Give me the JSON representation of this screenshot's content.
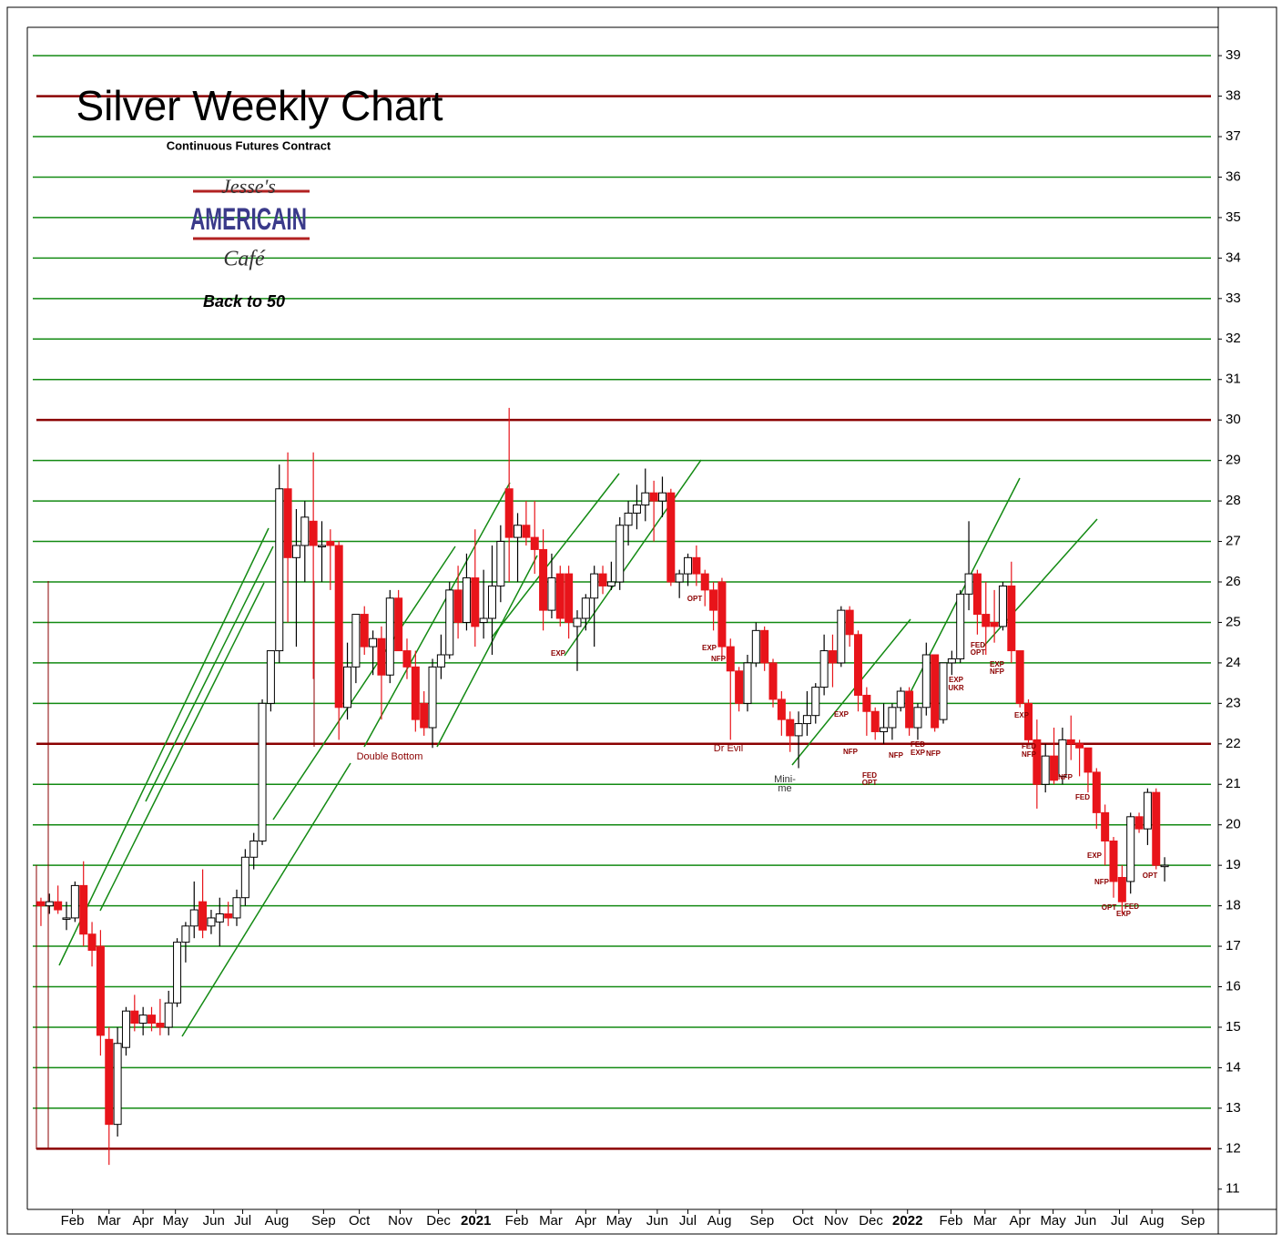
{
  "chart_data": {
    "type": "candlestick",
    "title": "Silver Weekly Chart",
    "subtitle": "Continuous Futures Contract",
    "logo": {
      "top": "Jesse's",
      "middle": "AMERICAIN",
      "bottom": "Café"
    },
    "tagline": "Back to 50",
    "ylim": [
      10.5,
      39.7
    ],
    "yticks": [
      11,
      12,
      13,
      14,
      15,
      16,
      17,
      18,
      19,
      20,
      21,
      22,
      23,
      24,
      25,
      26,
      27,
      28,
      29,
      30,
      31,
      32,
      33,
      34,
      35,
      36,
      37,
      38,
      39
    ],
    "xlim": [
      -1.6,
      138.3
    ],
    "xticks": [
      {
        "value": 3.7,
        "label": "Feb"
      },
      {
        "value": 8.0,
        "label": "Mar"
      },
      {
        "value": 12.0,
        "label": "Apr"
      },
      {
        "value": 15.8,
        "label": "May"
      },
      {
        "value": 20.3,
        "label": "Jun"
      },
      {
        "value": 23.7,
        "label": "Jul"
      },
      {
        "value": 27.7,
        "label": "Aug"
      },
      {
        "value": 33.2,
        "label": "Sep"
      },
      {
        "value": 37.4,
        "label": "Oct"
      },
      {
        "value": 42.2,
        "label": "Nov"
      },
      {
        "value": 46.7,
        "label": "Dec"
      },
      {
        "value": 51.1,
        "label": "2021"
      },
      {
        "value": 55.9,
        "label": "Feb"
      },
      {
        "value": 59.9,
        "label": "Mar"
      },
      {
        "value": 64.0,
        "label": "Apr"
      },
      {
        "value": 67.9,
        "label": "May"
      },
      {
        "value": 72.4,
        "label": "Jun"
      },
      {
        "value": 76.0,
        "label": "Jul"
      },
      {
        "value": 79.7,
        "label": "Aug"
      },
      {
        "value": 84.7,
        "label": "Sep"
      },
      {
        "value": 89.5,
        "label": "Oct"
      },
      {
        "value": 93.4,
        "label": "Nov"
      },
      {
        "value": 97.5,
        "label": "Dec"
      },
      {
        "value": 101.8,
        "label": "2022"
      },
      {
        "value": 106.9,
        "label": "Feb"
      },
      {
        "value": 110.9,
        "label": "Mar"
      },
      {
        "value": 115.0,
        "label": "Apr"
      },
      {
        "value": 118.9,
        "label": "May"
      },
      {
        "value": 122.7,
        "label": "Jun"
      },
      {
        "value": 126.7,
        "label": "Jul"
      },
      {
        "value": 130.5,
        "label": "Aug"
      },
      {
        "value": 135.3,
        "label": "Sep"
      }
    ],
    "up_color": "#ffffff",
    "down_color": "#e8141a",
    "level_color": "#138a13",
    "key_level_color": "#8b0000",
    "levels": [
      13,
      14,
      15,
      16,
      17,
      18,
      19,
      20,
      21,
      23,
      24,
      25,
      26,
      27,
      28,
      29,
      31,
      32,
      33,
      34,
      35,
      36,
      37,
      39
    ],
    "key_levels": [
      12,
      22,
      30,
      38
    ],
    "annotations": [
      "Double Bottom",
      "Dr Evil",
      "Mini-",
      "me"
    ],
    "event_labels": [
      "EXP",
      "OPT",
      "EXP",
      "NFP",
      "EXP",
      "NFP",
      "FED",
      "OPT",
      "NFP",
      "FED",
      "EXP",
      "NFP",
      "EXP",
      "UKR",
      "FED",
      "OPT",
      "EXP",
      "NFP",
      "EXP",
      "FED",
      "NFP",
      "NFP",
      "FED",
      "EXP",
      "NFP",
      "OPT",
      "FED",
      "EXP",
      "OPT"
    ],
    "ohlc": [
      [
        18.1,
        18.2,
        17.5,
        18.0
      ],
      [
        18.0,
        18.3,
        17.8,
        18.1
      ],
      [
        18.1,
        18.5,
        17.8,
        17.9
      ],
      [
        17.7,
        18.1,
        17.4,
        17.7
      ],
      [
        17.7,
        18.6,
        17.6,
        18.5
      ],
      [
        18.5,
        19.1,
        17.0,
        17.3
      ],
      [
        17.3,
        17.6,
        16.5,
        16.9
      ],
      [
        17.0,
        17.4,
        14.3,
        14.8
      ],
      [
        14.7,
        15.0,
        11.6,
        12.6
      ],
      [
        12.6,
        15.0,
        12.3,
        14.6
      ],
      [
        14.5,
        15.5,
        14.3,
        15.4
      ],
      [
        15.4,
        15.8,
        14.9,
        15.1
      ],
      [
        15.1,
        15.5,
        14.8,
        15.3
      ],
      [
        15.3,
        15.5,
        14.9,
        15.1
      ],
      [
        15.1,
        15.7,
        14.8,
        15.0
      ],
      [
        15.0,
        15.9,
        14.8,
        15.6
      ],
      [
        15.6,
        17.2,
        15.5,
        17.1
      ],
      [
        17.1,
        17.6,
        16.6,
        17.5
      ],
      [
        17.5,
        18.6,
        17.2,
        17.9
      ],
      [
        18.1,
        18.9,
        17.2,
        17.4
      ],
      [
        17.5,
        17.9,
        17.3,
        17.7
      ],
      [
        17.6,
        18.2,
        17.0,
        17.8
      ],
      [
        17.8,
        18.1,
        17.5,
        17.7
      ],
      [
        17.7,
        18.4,
        17.5,
        18.2
      ],
      [
        18.2,
        19.4,
        18.0,
        19.2
      ],
      [
        19.2,
        19.8,
        18.9,
        19.6
      ],
      [
        19.6,
        23.1,
        19.5,
        23.0
      ],
      [
        23.0,
        24.3,
        22.8,
        24.3
      ],
      [
        24.3,
        28.9,
        24.0,
        28.3
      ],
      [
        28.3,
        29.2,
        25.0,
        26.6
      ],
      [
        26.6,
        27.8,
        24.4,
        26.9
      ],
      [
        26.9,
        28.0,
        26.0,
        27.6
      ],
      [
        27.5,
        29.2,
        23.6,
        26.9
      ],
      [
        26.9,
        27.5,
        26.0,
        26.9
      ],
      [
        27.0,
        27.3,
        25.8,
        26.9
      ],
      [
        26.9,
        27.0,
        22.1,
        22.9
      ],
      [
        22.9,
        24.5,
        22.6,
        23.9
      ],
      [
        23.9,
        25.2,
        23.5,
        25.2
      ],
      [
        25.2,
        25.4,
        24.2,
        24.4
      ],
      [
        24.4,
        24.8,
        23.7,
        24.6
      ],
      [
        24.6,
        24.9,
        22.6,
        23.7
      ],
      [
        23.7,
        25.8,
        23.5,
        25.6
      ],
      [
        25.6,
        25.8,
        24.3,
        24.3
      ],
      [
        24.3,
        24.6,
        23.6,
        23.9
      ],
      [
        23.9,
        24.3,
        22.3,
        22.6
      ],
      [
        23.0,
        23.3,
        22.2,
        22.4
      ],
      [
        22.4,
        24.1,
        21.9,
        23.9
      ],
      [
        23.9,
        24.7,
        23.6,
        24.2
      ],
      [
        24.2,
        26.0,
        24.1,
        25.8
      ],
      [
        25.8,
        26.4,
        24.6,
        25.0
      ],
      [
        25.0,
        26.7,
        24.8,
        26.1
      ],
      [
        26.1,
        27.3,
        24.4,
        24.9
      ],
      [
        25.0,
        26.3,
        24.6,
        25.1
      ],
      [
        25.1,
        26.9,
        24.2,
        25.9
      ],
      [
        25.9,
        27.4,
        25.5,
        27.0
      ],
      [
        28.3,
        30.3,
        26.0,
        27.1
      ],
      [
        27.1,
        27.7,
        26.0,
        27.4
      ],
      [
        27.4,
        28.0,
        26.9,
        27.1
      ],
      [
        27.1,
        28.0,
        26.2,
        26.8
      ],
      [
        26.8,
        27.3,
        24.8,
        25.3
      ],
      [
        25.3,
        26.7,
        25.1,
        26.1
      ],
      [
        26.2,
        26.4,
        24.9,
        25.1
      ],
      [
        26.2,
        26.4,
        24.6,
        25.0
      ],
      [
        24.9,
        25.3,
        23.8,
        25.1
      ],
      [
        25.1,
        25.7,
        24.8,
        25.6
      ],
      [
        25.6,
        26.4,
        24.4,
        26.2
      ],
      [
        26.2,
        26.4,
        25.7,
        25.9
      ],
      [
        25.9,
        26.5,
        25.8,
        26.0
      ],
      [
        26.0,
        27.6,
        25.8,
        27.4
      ],
      [
        27.4,
        28.0,
        26.9,
        27.7
      ],
      [
        27.7,
        28.4,
        27.3,
        27.9
      ],
      [
        27.9,
        28.8,
        27.5,
        28.2
      ],
      [
        28.2,
        28.5,
        27.0,
        28.0
      ],
      [
        28.0,
        28.6,
        27.6,
        28.2
      ],
      [
        28.2,
        28.3,
        25.9,
        26.0
      ],
      [
        26.0,
        26.3,
        25.6,
        26.2
      ],
      [
        26.2,
        26.7,
        25.9,
        26.6
      ],
      [
        26.6,
        26.9,
        25.9,
        26.2
      ],
      [
        26.2,
        26.3,
        25.4,
        25.8
      ],
      [
        25.8,
        26.0,
        24.8,
        25.3
      ],
      [
        26.0,
        26.1,
        24.1,
        24.4
      ],
      [
        24.4,
        24.6,
        22.1,
        23.8
      ],
      [
        23.8,
        23.9,
        22.8,
        23.0
      ],
      [
        23.0,
        24.2,
        22.8,
        24.0
      ],
      [
        24.0,
        25.0,
        23.9,
        24.8
      ],
      [
        24.8,
        24.9,
        23.8,
        24.0
      ],
      [
        24.0,
        24.1,
        22.9,
        23.1
      ],
      [
        23.1,
        23.3,
        22.2,
        22.6
      ],
      [
        22.6,
        22.8,
        21.8,
        22.2
      ],
      [
        22.2,
        22.8,
        21.4,
        22.5
      ],
      [
        22.5,
        23.3,
        22.2,
        22.7
      ],
      [
        22.7,
        23.5,
        22.5,
        23.4
      ],
      [
        23.4,
        24.7,
        23.2,
        24.3
      ],
      [
        24.3,
        24.7,
        23.4,
        24.0
      ],
      [
        24.0,
        25.4,
        23.9,
        25.3
      ],
      [
        25.3,
        25.4,
        24.4,
        24.7
      ],
      [
        24.7,
        24.8,
        22.8,
        23.2
      ],
      [
        23.2,
        23.4,
        22.2,
        22.8
      ],
      [
        22.8,
        22.9,
        22.1,
        22.3
      ],
      [
        22.3,
        23.0,
        22.0,
        22.4
      ],
      [
        22.4,
        23.0,
        22.1,
        22.9
      ],
      [
        22.9,
        23.4,
        22.8,
        23.3
      ],
      [
        23.3,
        23.4,
        22.2,
        22.4
      ],
      [
        22.4,
        23.0,
        22.1,
        22.9
      ],
      [
        22.9,
        24.5,
        22.7,
        24.2
      ],
      [
        24.2,
        24.2,
        22.3,
        22.4
      ],
      [
        22.6,
        24.0,
        22.5,
        24.0
      ],
      [
        24.0,
        24.3,
        23.7,
        24.1
      ],
      [
        24.1,
        25.8,
        24.0,
        25.7
      ],
      [
        25.7,
        27.5,
        25.3,
        26.2
      ],
      [
        26.2,
        26.3,
        24.7,
        25.2
      ],
      [
        25.2,
        26.0,
        24.2,
        24.9
      ],
      [
        25.0,
        25.8,
        24.5,
        24.9
      ],
      [
        24.9,
        26.0,
        24.8,
        25.9
      ],
      [
        25.9,
        26.5,
        24.0,
        24.3
      ],
      [
        24.3,
        24.3,
        22.9,
        23.0
      ],
      [
        23.0,
        23.1,
        22.0,
        22.1
      ],
      [
        22.1,
        22.6,
        20.4,
        21.0
      ],
      [
        21.0,
        22.0,
        20.8,
        21.7
      ],
      [
        21.7,
        22.4,
        21.0,
        21.1
      ],
      [
        21.2,
        22.4,
        21.0,
        22.1
      ],
      [
        22.1,
        22.7,
        21.6,
        22.0
      ],
      [
        22.0,
        22.1,
        21.2,
        21.9
      ],
      [
        21.9,
        21.9,
        20.8,
        21.3
      ],
      [
        21.3,
        21.4,
        19.9,
        20.3
      ],
      [
        20.3,
        20.5,
        19.0,
        19.6
      ],
      [
        19.6,
        19.7,
        18.2,
        18.6
      ],
      [
        18.7,
        19.0,
        17.8,
        18.1
      ],
      [
        18.6,
        20.3,
        18.3,
        20.2
      ],
      [
        20.2,
        20.3,
        19.8,
        19.9
      ],
      [
        19.9,
        20.9,
        19.5,
        20.8
      ],
      [
        20.8,
        20.9,
        18.9,
        19.0
      ],
      [
        19.0,
        19.2,
        18.6,
        19.0
      ]
    ]
  }
}
